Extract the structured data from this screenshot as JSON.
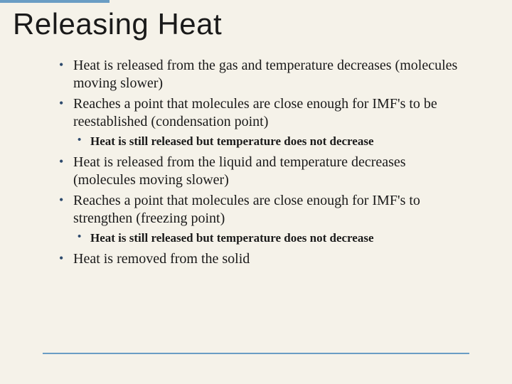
{
  "title": "Releasing Heat",
  "accent_color": "#6a9dc4",
  "bullet_color": "#2d4a6d",
  "background_color": "#f5f2e9",
  "text_color": "#1a1a1a",
  "title_fontsize": 42,
  "body_fontsize": 20,
  "sub_fontsize": 17,
  "bullets": {
    "b1": "Heat is released from the gas and temperature decreases (molecules moving slower)",
    "b2": "Reaches a point that molecules are close enough for IMF's to be reestablished (condensation point)",
    "b2_sub": "Heat is still released but temperature does not decrease",
    "b3": "Heat is released from the liquid and temperature decreases (molecules moving slower)",
    "b4": "Reaches a point that molecules are close enough for IMF's to strengthen (freezing point)",
    "b4_sub": "Heat is still released but temperature does not decrease",
    "b5": "Heat is removed from the solid"
  }
}
